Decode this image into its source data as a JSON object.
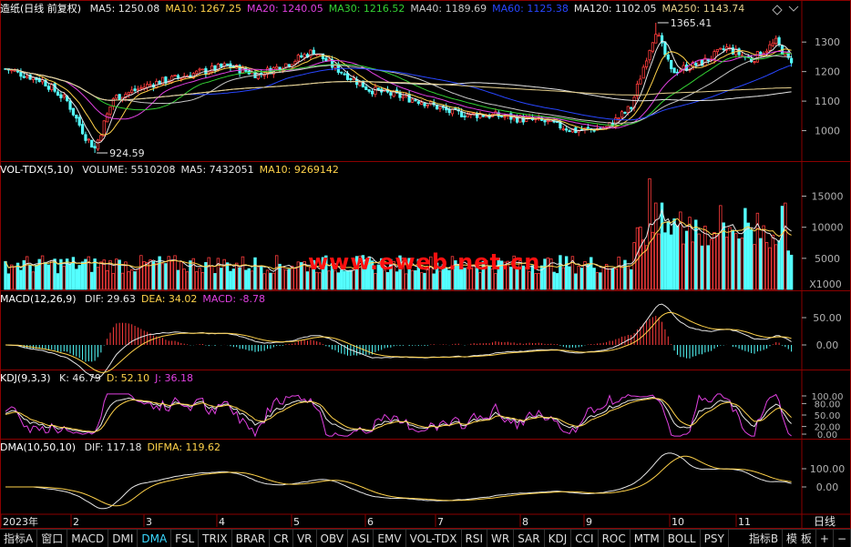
{
  "price_panel": {
    "title": "造纸(日线 前复权)",
    "indicators": [
      {
        "label": "MA5: 1250.08",
        "color": "#e6e6e6"
      },
      {
        "label": "MA10: 1267.25",
        "color": "#ffd24a"
      },
      {
        "label": "MA20: 1240.05",
        "color": "#e040e0"
      },
      {
        "label": "MA30: 1216.52",
        "color": "#34d234"
      },
      {
        "label": "MA40: 1189.69",
        "color": "#c8c8c8"
      },
      {
        "label": "MA60: 1125.38",
        "color": "#2846ff"
      },
      {
        "label": "MA120: 1102.05",
        "color": "#e6e6e6"
      },
      {
        "label": "MA250: 1143.74",
        "color": "#e6d08c"
      }
    ],
    "high_label": "1365.41",
    "low_label": "924.59",
    "y_ticks": [
      "1300",
      "1200",
      "1100",
      "1000"
    ]
  },
  "volume_panel": {
    "title": "VOL-TDX(5,10)",
    "indicators": [
      {
        "label": "VOLUME: 5510208",
        "color": "#e6e6e6"
      },
      {
        "label": "MA5: 7432051",
        "color": "#e6e6e6"
      },
      {
        "label": "MA10: 9269142",
        "color": "#ffd24a"
      }
    ],
    "y_ticks": [
      "15000",
      "10000",
      "5000"
    ],
    "unit": "X1000"
  },
  "macd_panel": {
    "title": "MACD(12,26,9)",
    "indicators": [
      {
        "label": "DIF: 29.63",
        "color": "#e6e6e6"
      },
      {
        "label": "DEA: 34.02",
        "color": "#ffd24a"
      },
      {
        "label": "MACD: -8.78",
        "color": "#e040e0"
      }
    ],
    "y_ticks": [
      "50.00",
      "0.00"
    ]
  },
  "kdj_panel": {
    "title": "KDJ(9,3,3)",
    "indicators": [
      {
        "label": "K: 46.79",
        "color": "#e6e6e6"
      },
      {
        "label": "D: 52.10",
        "color": "#ffd24a"
      },
      {
        "label": "J: 36.18",
        "color": "#e040e0"
      }
    ],
    "y_ticks": [
      "100.00",
      "80.00",
      "50.00",
      "20.00",
      "0.00"
    ]
  },
  "dma_panel": {
    "title": "DMA(10,50,10)",
    "indicators": [
      {
        "label": "DIF: 117.18",
        "color": "#e6e6e6"
      },
      {
        "label": "DIFMA: 119.62",
        "color": "#ffd24a"
      }
    ],
    "y_ticks": [
      "100.00",
      "0.00"
    ]
  },
  "x_axis": [
    "2023年",
    "2",
    "3",
    "4",
    "5",
    "6",
    "7",
    "8",
    "9",
    "10",
    "11"
  ],
  "period_label": "日线",
  "watermark": "www.eweb.net.cn",
  "tabs": [
    "指标A",
    "窗口",
    "MACD",
    "DMI",
    "DMA",
    "FSL",
    "TRIX",
    "BRAR",
    "CR",
    "VR",
    "OBV",
    "ASI",
    "EMV",
    "VOL-TDX",
    "RSI",
    "WR",
    "SAR",
    "KDJ",
    "CCI",
    "ROC",
    "MTM",
    "BOLL",
    "PSY"
  ],
  "active_tab": "DMA",
  "right_tabs": [
    "指标B",
    "模 板",
    "+",
    "−"
  ],
  "colors": {
    "up": "#ff3c3c",
    "down": "#54ffff",
    "grid": "#8b0000",
    "axis": "#b0b0b0"
  },
  "chart_data": {
    "type": "candlestick",
    "x_range_months": [
      "2023-01",
      "2023-11"
    ],
    "price": {
      "ylim": [
        900,
        1390
      ],
      "high": 1365.41,
      "low": 924.59,
      "last_close": 1250.08
    },
    "volume": {
      "ylim": [
        0,
        18000
      ],
      "unit": "X1000",
      "last": 5510.208,
      "ma5": 7432.051,
      "ma10": 9269.142
    },
    "macd": {
      "dif": 29.63,
      "dea": 34.02,
      "macd": -8.78
    },
    "kdj": {
      "k": 46.79,
      "d": 52.1,
      "j": 36.18
    },
    "dma": {
      "dif": 117.18,
      "difma": 119.62
    },
    "key_closes": [
      {
        "x": 0,
        "y": 1210
      },
      {
        "x": 12,
        "y": 1170
      },
      {
        "x": 20,
        "y": 1100
      },
      {
        "x": 26,
        "y": 980
      },
      {
        "x": 29,
        "y": 940
      },
      {
        "x": 35,
        "y": 1110
      },
      {
        "x": 48,
        "y": 1160
      },
      {
        "x": 60,
        "y": 1190
      },
      {
        "x": 72,
        "y": 1220
      },
      {
        "x": 82,
        "y": 1190
      },
      {
        "x": 92,
        "y": 1230
      },
      {
        "x": 100,
        "y": 1270
      },
      {
        "x": 106,
        "y": 1220
      },
      {
        "x": 118,
        "y": 1140
      },
      {
        "x": 135,
        "y": 1100
      },
      {
        "x": 145,
        "y": 1060
      },
      {
        "x": 160,
        "y": 1050
      },
      {
        "x": 175,
        "y": 1030
      },
      {
        "x": 185,
        "y": 1000
      },
      {
        "x": 195,
        "y": 1010
      },
      {
        "x": 203,
        "y": 1080
      },
      {
        "x": 208,
        "y": 1250
      },
      {
        "x": 211,
        "y": 1340
      },
      {
        "x": 216,
        "y": 1200
      },
      {
        "x": 226,
        "y": 1230
      },
      {
        "x": 234,
        "y": 1280
      },
      {
        "x": 242,
        "y": 1240
      },
      {
        "x": 250,
        "y": 1300
      },
      {
        "x": 254,
        "y": 1240
      }
    ]
  }
}
